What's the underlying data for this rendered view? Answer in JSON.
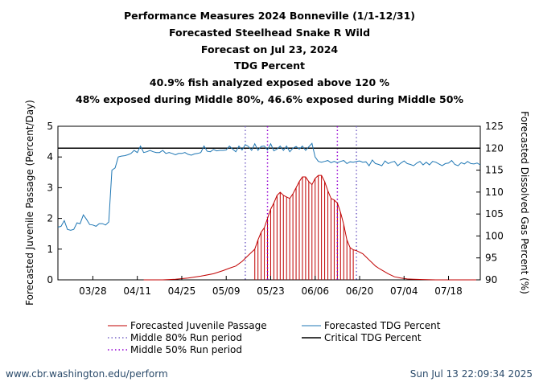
{
  "titles": [
    "Performance Measures 2024 Bonneville (1/1-12/31)",
    "Forecasted Steelhead Snake R Wild",
    "Forecast on Jul 23, 2024",
    "TDG Percent",
    "40.9% fish analyzed exposed above 120 %",
    "48% exposed during Middle 80%, 46.6% exposed during Middle 50%"
  ],
  "footer": {
    "url": "www.cbr.washington.edu/perform",
    "timestamp": "Sun Jul 13 22:09:34 2025"
  },
  "colors": {
    "passage": "#c00000",
    "tdg": "#1f77b4",
    "middle80": "#7b68c8",
    "middle50": "#9400d3",
    "critical": "#000000"
  },
  "chart_data": {
    "type": "line",
    "x_domain": [
      "03/17",
      "07/28"
    ],
    "xticks": [
      "03/28",
      "04/11",
      "04/25",
      "05/09",
      "05/23",
      "06/06",
      "06/20",
      "07/04",
      "07/18"
    ],
    "xtick_days": [
      11,
      25,
      39,
      53,
      67,
      81,
      95,
      109,
      123
    ],
    "y_left": {
      "label": "Forecasted Juvenile Passage (Percent/Day)",
      "range": [
        0,
        5
      ],
      "ticks": [
        "0",
        "1",
        "2",
        "3",
        "4",
        "5"
      ]
    },
    "y_right": {
      "label": "Forecasted Dissolved Gas Percent (%)",
      "range": [
        90,
        125
      ],
      "ticks": [
        "90",
        "95",
        "100",
        "105",
        "110",
        "115",
        "120",
        "125"
      ]
    },
    "critical_tdg": 120,
    "middle80_days": [
      59,
      94
    ],
    "middle50_days": [
      66,
      88
    ],
    "series": [
      {
        "name": "Forecasted Juvenile Passage",
        "axis": "left",
        "x": [
          27,
          33,
          37,
          41,
          45,
          49,
          52,
          54,
          56,
          58,
          60,
          62,
          63,
          64,
          65,
          66,
          67,
          68,
          69,
          70,
          71,
          72,
          73,
          74,
          75,
          76,
          77,
          78,
          79,
          80,
          81,
          82,
          83,
          84,
          85,
          86,
          87,
          88,
          89,
          90,
          91,
          92,
          93,
          94,
          95,
          96,
          97,
          98,
          99,
          100,
          101,
          102,
          104,
          106,
          108,
          110,
          112,
          115,
          119,
          125,
          132
        ],
        "y": [
          0,
          0,
          0.02,
          0.06,
          0.12,
          0.2,
          0.3,
          0.38,
          0.45,
          0.6,
          0.8,
          1.0,
          1.3,
          1.55,
          1.7,
          2.0,
          2.3,
          2.5,
          2.75,
          2.85,
          2.75,
          2.7,
          2.65,
          2.8,
          3.0,
          3.2,
          3.35,
          3.35,
          3.2,
          3.1,
          3.3,
          3.4,
          3.4,
          3.2,
          2.9,
          2.65,
          2.6,
          2.5,
          2.2,
          1.8,
          1.3,
          1.05,
          0.98,
          0.95,
          0.9,
          0.85,
          0.75,
          0.65,
          0.55,
          0.45,
          0.38,
          0.32,
          0.2,
          0.1,
          0.06,
          0.03,
          0.02,
          0.01,
          0,
          0,
          0
        ]
      },
      {
        "name": "Forecasted TDG Percent",
        "axis": "right",
        "x": [
          0,
          1,
          2,
          3,
          4,
          5,
          6,
          7,
          8,
          9,
          10,
          11,
          12,
          13,
          14,
          15,
          16,
          17,
          18,
          19,
          20,
          21,
          22,
          23,
          24,
          25,
          26,
          27,
          28,
          29,
          30,
          31,
          32,
          33,
          34,
          35,
          36,
          37,
          38,
          39,
          40,
          41,
          42,
          43,
          44,
          45,
          46,
          47,
          48,
          49,
          50,
          51,
          52,
          53,
          54,
          55,
          56,
          57,
          58,
          59,
          60,
          61,
          62,
          63,
          64,
          65,
          66,
          67,
          68,
          69,
          70,
          71,
          72,
          73,
          74,
          75,
          76,
          77,
          78,
          79,
          80,
          81,
          82,
          83,
          84,
          85,
          86,
          87,
          88,
          89,
          90,
          91,
          92,
          93,
          94,
          95,
          96,
          97,
          98,
          99,
          100,
          101,
          102,
          103,
          104,
          105,
          106,
          107,
          108,
          109,
          110,
          111,
          112,
          113,
          114,
          115,
          116,
          117,
          118,
          119,
          120,
          121,
          122,
          123,
          124,
          125,
          126,
          127,
          128,
          129,
          130,
          131,
          132,
          133
        ],
        "y": [
          102,
          102.2,
          103.5,
          101.5,
          101.3,
          101.5,
          103,
          102.8,
          104.8,
          103.8,
          102.6,
          102.5,
          102.2,
          102.8,
          102.8,
          102.5,
          103.2,
          115,
          115.5,
          118,
          118.2,
          118.3,
          118.5,
          118.8,
          119.5,
          119,
          120.5,
          119,
          119.2,
          119.5,
          119.2,
          119,
          119,
          119.5,
          118.8,
          119,
          118.8,
          118.5,
          118.8,
          118.8,
          119,
          118.6,
          118.4,
          118.7,
          118.8,
          119,
          120.5,
          119.3,
          119.2,
          119.7,
          119.4,
          119.5,
          119.5,
          119.6,
          120.5,
          119.8,
          119.2,
          120.5,
          119.6,
          120.8,
          120.4,
          119.5,
          121,
          119.5,
          120.4,
          120.5,
          119.6,
          121,
          119.4,
          119.8,
          120.5,
          119.5,
          120.5,
          119.2,
          120,
          120.4,
          119.8,
          120.5,
          119.5,
          120.3,
          121.1,
          118,
          117,
          116.8,
          117,
          117.2,
          116.7,
          117,
          116.7,
          117,
          117.2,
          116.5,
          116.9,
          116.8,
          117,
          117.1,
          116.8,
          116.9,
          116,
          117.3,
          116.5,
          116.3,
          116,
          117.1,
          116.5,
          116.8,
          117,
          116,
          116.6,
          117.1,
          116.5,
          116.3,
          116,
          116.6,
          117,
          116.2,
          116.8,
          116.2,
          117,
          116.8,
          116.4,
          116,
          116.5,
          116.6,
          117.2,
          116.3,
          116,
          116.7,
          116.4,
          117,
          116.5,
          116.4,
          116.6,
          116.2
        ]
      },
      {
        "name": "Middle 80% Run period",
        "axis": "left",
        "x": [],
        "y": []
      },
      {
        "name": "Middle 50% Run period",
        "axis": "left",
        "x": [],
        "y": []
      },
      {
        "name": "Critical TDG Percent",
        "axis": "right",
        "x": [],
        "y": []
      }
    ],
    "middle80_bars_days": [
      62,
      63,
      64,
      65,
      66
    ],
    "middle50_bars_days": [
      67,
      68,
      69,
      70,
      71,
      72,
      73,
      74,
      75,
      76,
      77,
      78,
      79,
      80,
      81,
      82,
      83,
      84,
      85,
      86,
      87,
      88,
      89,
      90,
      91,
      92,
      93
    ],
    "legend": {
      "placement": "bottom",
      "left": [
        "Forecasted Juvenile Passage",
        "Middle 80% Run period",
        "Middle 50% Run period"
      ],
      "right": [
        "Forecasted TDG Percent",
        "Critical TDG Percent"
      ]
    }
  }
}
